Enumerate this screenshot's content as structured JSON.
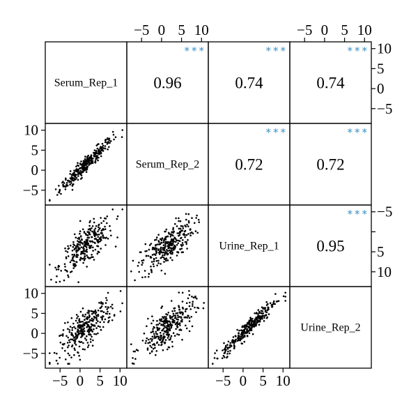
{
  "chart_data": {
    "type": "scatter-matrix",
    "variables": [
      "Serum_Rep_1",
      "Serum_Rep_2",
      "Urine_Rep_1",
      "Urine_Rep_2"
    ],
    "axis_range": [
      -8,
      11
    ],
    "tick_values": [
      -5,
      0,
      5,
      10
    ],
    "tick_labels": [
      "−5",
      "0",
      "5",
      "10"
    ],
    "right_axis_ticks_row3": [
      "10",
      "5",
      "",
      "−5"
    ],
    "correlations": [
      {
        "row": 0,
        "col": 1,
        "value": "0.96",
        "significance": "***"
      },
      {
        "row": 0,
        "col": 2,
        "value": "0.74",
        "significance": "***"
      },
      {
        "row": 0,
        "col": 3,
        "value": "0.74",
        "significance": "***"
      },
      {
        "row": 1,
        "col": 2,
        "value": "0.72",
        "significance": "***"
      },
      {
        "row": 1,
        "col": 3,
        "value": "0.72",
        "significance": "***"
      },
      {
        "row": 2,
        "col": 3,
        "value": "0.95",
        "significance": "***"
      }
    ],
    "scatter_panels": [
      {
        "row": 1,
        "col": 0,
        "correlation": 0.96
      },
      {
        "row": 2,
        "col": 0,
        "correlation": 0.74
      },
      {
        "row": 2,
        "col": 1,
        "correlation": 0.72
      },
      {
        "row": 3,
        "col": 0,
        "correlation": 0.74
      },
      {
        "row": 3,
        "col": 1,
        "correlation": 0.72
      },
      {
        "row": 3,
        "col": 2,
        "correlation": 0.95
      }
    ],
    "points_per_panel": 300,
    "significance_color": "#3a8fc4",
    "point_color": "#000000"
  }
}
